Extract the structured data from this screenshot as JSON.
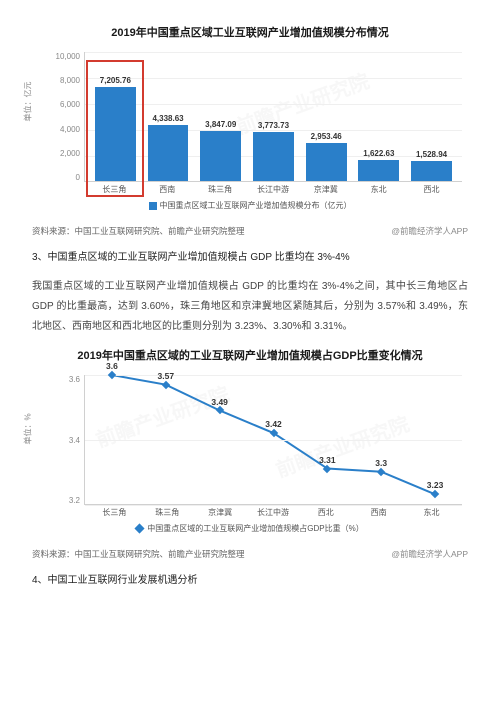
{
  "chart1": {
    "type": "bar",
    "title": "2019年中国重点区域工业互联网产业增加值规模分布情况",
    "y_axis_label": "单位：亿元",
    "y_ticks": [
      "10,000",
      "8,000",
      "6,000",
      "4,000",
      "2,000",
      "0"
    ],
    "y_max": 10000,
    "categories": [
      "长三角",
      "西南",
      "珠三角",
      "长江中游",
      "京津冀",
      "东北",
      "西北"
    ],
    "values": [
      7205.76,
      4338.63,
      3847.09,
      3773.73,
      2953.46,
      1622.63,
      1528.94
    ],
    "bar_color": "#2a7fc9",
    "highlight_index": 0,
    "highlight_color": "#d33b2f",
    "grid_color": "#efefef",
    "legend": "中国重点区域工业互联网产业增加值规模分布（亿元）"
  },
  "source1": {
    "left": "资料来源：中国工业互联网研究院、前瞻产业研究院整理",
    "right": "@前瞻经济学人APP"
  },
  "section3_title": "3、中国重点区域的工业互联网产业增加值规模占 GDP 比重均在 3%-4%",
  "para1": "我国重点区域的工业互联网产业增加值规模占 GDP 的比重均在 3%-4%之间，其中长三角地区占 GDP 的比重最高，达到 3.60%，珠三角地区和京津冀地区紧随其后，分别为 3.57%和 3.49%，东北地区、西南地区和西北地区的比重则分别为 3.23%、3.30%和 3.31%。",
  "chart2": {
    "type": "line",
    "title": "2019年中国重点区域的工业互联网产业增加值规模占GDP比重变化情况",
    "y_axis_label": "单位：%",
    "y_ticks": [
      "3.6",
      "3.4",
      "3.2"
    ],
    "y_min": 3.2,
    "y_max": 3.6,
    "categories": [
      "长三角",
      "珠三角",
      "京津冀",
      "长江中游",
      "西北",
      "西南",
      "东北"
    ],
    "values": [
      3.6,
      3.57,
      3.49,
      3.42,
      3.31,
      3.3,
      3.23
    ],
    "line_color": "#2a7fc9",
    "marker_style": "diamond",
    "marker_size": 6,
    "grid_color": "#efefef",
    "legend": "中国重点区域的工业互联网产业增加值规模占GDP比重（%）"
  },
  "source2": {
    "left": "资料来源：中国工业互联网研究院、前瞻产业研究院整理",
    "right": "@前瞻经济学人APP"
  },
  "section4_title": "4、中国工业互联网行业发展机遇分析",
  "watermark": "前瞻产业研究院"
}
